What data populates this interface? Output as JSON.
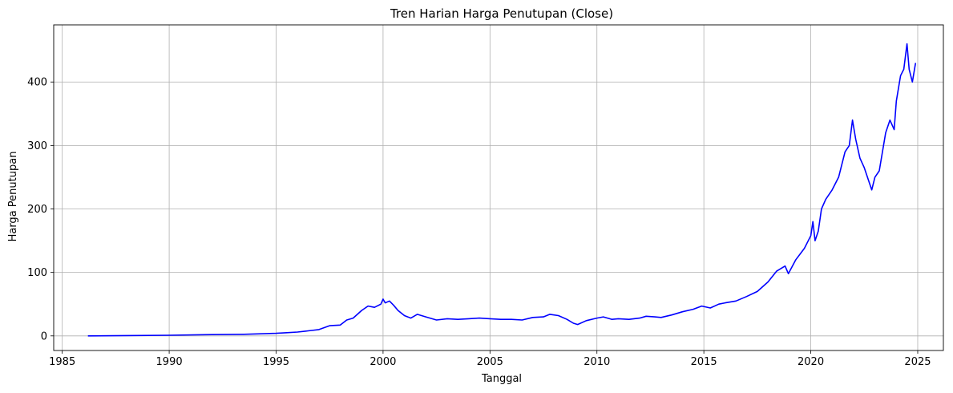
{
  "chart_data": {
    "type": "line",
    "title": "Tren Harian Harga Penutupan (Close)",
    "xlabel": "Tanggal",
    "ylabel": "Harga Penutupan",
    "xlim": [
      1984.6,
      2026.2
    ],
    "ylim": [
      -23,
      490
    ],
    "x_ticks": [
      1985,
      1990,
      1995,
      2000,
      2005,
      2010,
      2015,
      2020,
      2025
    ],
    "x_tick_labels": [
      "1985",
      "1990",
      "1995",
      "2000",
      "2005",
      "2010",
      "2015",
      "2020",
      "2025"
    ],
    "y_ticks": [
      0,
      100,
      200,
      300,
      400
    ],
    "y_tick_labels": [
      "0",
      "100",
      "200",
      "300",
      "400"
    ],
    "grid": true,
    "legend": "none",
    "series": [
      {
        "color": "#0000ff",
        "x": [
          1986.2,
          1988.0,
          1990.0,
          1992.0,
          1993.5,
          1995.0,
          1995.5,
          1996.0,
          1996.5,
          1997.0,
          1997.5,
          1998.0,
          1998.3,
          1998.6,
          1999.0,
          1999.3,
          1999.6,
          1999.9,
          2000.0,
          2000.1,
          2000.3,
          2000.5,
          2000.7,
          2001.0,
          2001.3,
          2001.6,
          2002.0,
          2002.5,
          2003.0,
          2003.5,
          2004.0,
          2004.5,
          2005.0,
          2005.5,
          2006.0,
          2006.5,
          2007.0,
          2007.5,
          2007.8,
          2008.2,
          2008.6,
          2008.9,
          2009.1,
          2009.5,
          2010.0,
          2010.3,
          2010.7,
          2011.0,
          2011.5,
          2012.0,
          2012.3,
          2012.7,
          2013.0,
          2013.5,
          2014.0,
          2014.5,
          2014.9,
          2015.3,
          2015.7,
          2016.0,
          2016.5,
          2017.0,
          2017.5,
          2018.0,
          2018.4,
          2018.8,
          2018.95,
          2019.3,
          2019.7,
          2020.0,
          2020.1,
          2020.2,
          2020.35,
          2020.5,
          2020.7,
          2021.0,
          2021.3,
          2021.6,
          2021.8,
          2021.95,
          2022.1,
          2022.3,
          2022.5,
          2022.7,
          2022.85,
          2023.0,
          2023.2,
          2023.5,
          2023.7,
          2023.9,
          2024.0,
          2024.2,
          2024.35,
          2024.5,
          2024.6,
          2024.75,
          2024.9
        ],
        "y": [
          0,
          0.5,
          1,
          2,
          2.5,
          4,
          5,
          6,
          8,
          10,
          16,
          17,
          25,
          28,
          40,
          47,
          45,
          50,
          58,
          52,
          55,
          48,
          40,
          32,
          28,
          34,
          30,
          25,
          27,
          26,
          27,
          28,
          27,
          26,
          26,
          25,
          29,
          30,
          34,
          32,
          26,
          20,
          18,
          24,
          28,
          30,
          26,
          27,
          26,
          28,
          31,
          30,
          29,
          33,
          38,
          42,
          47,
          44,
          50,
          52,
          55,
          62,
          70,
          85,
          102,
          110,
          98,
          120,
          138,
          158,
          180,
          150,
          165,
          200,
          215,
          230,
          250,
          290,
          300,
          340,
          310,
          280,
          265,
          245,
          230,
          250,
          260,
          320,
          340,
          325,
          370,
          410,
          420,
          460,
          420,
          400,
          430
        ]
      }
    ]
  }
}
